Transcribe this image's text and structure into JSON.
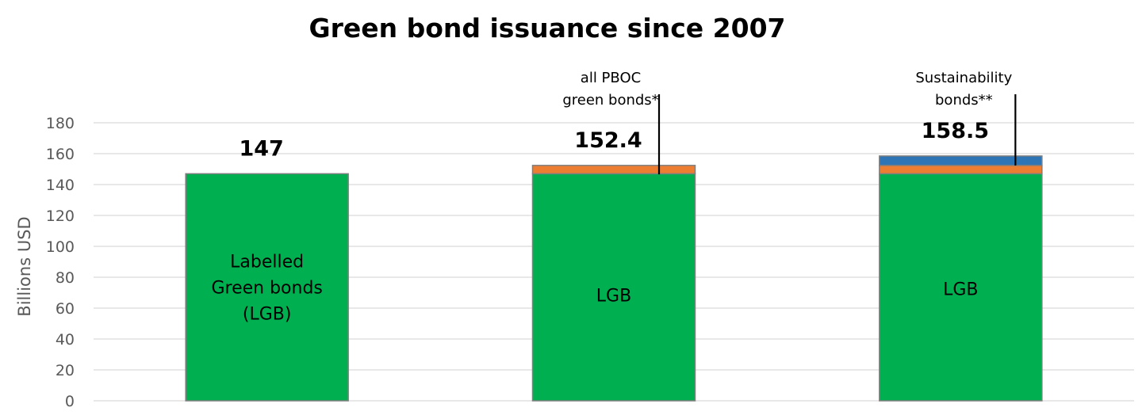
{
  "chart_data": {
    "type": "bar",
    "stacked": true,
    "title": "Green bond issuance since 2007",
    "ylabel": "Billions  USD",
    "ylim": [
      0,
      180
    ],
    "yticks": [
      0,
      20,
      40,
      60,
      80,
      100,
      120,
      140,
      160,
      180
    ],
    "grid": true,
    "categories": [
      "",
      "",
      ""
    ],
    "colors": {
      "green": "#00b050",
      "orange": "#ed7d31",
      "blue": "#2e75b6",
      "bar_border": "#7f7f7f"
    },
    "bars": [
      {
        "total_label": "147",
        "segments": [
          {
            "value": 147,
            "color": "#00b050",
            "label_lines": [
              "Labelled",
              "Green bonds",
              "(LGB)"
            ]
          }
        ]
      },
      {
        "total_label": "152.4",
        "segments": [
          {
            "value": 147,
            "color": "#00b050",
            "label_lines": [
              "LGB"
            ]
          },
          {
            "value": 5.4,
            "color": "#ed7d31",
            "label_lines": []
          }
        ]
      },
      {
        "total_label": "158.5",
        "segments": [
          {
            "value": 147,
            "color": "#00b050",
            "label_lines": [
              "LGB"
            ]
          },
          {
            "value": 5.4,
            "color": "#ed7d31",
            "label_lines": []
          },
          {
            "value": 6.1,
            "color": "#2e75b6",
            "label_lines": []
          }
        ]
      }
    ],
    "annotations": [
      {
        "bar": 1,
        "segment": 1,
        "lines": [
          "all PBOC",
          "green bonds*"
        ]
      },
      {
        "bar": 2,
        "segment": 2,
        "lines": [
          "Sustainability",
          "bonds**"
        ]
      }
    ]
  }
}
